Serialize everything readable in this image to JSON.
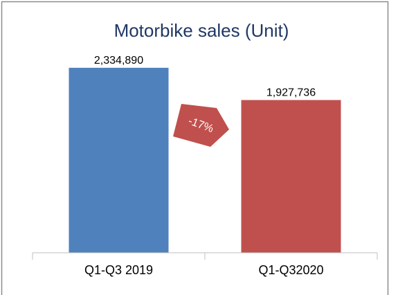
{
  "chart_data": {
    "type": "bar",
    "title": "Motorbike sales (Unit)",
    "categories": [
      "Q1-Q3 2019",
      "Q1-Q32020"
    ],
    "values": [
      2334890,
      1927736
    ],
    "value_labels": [
      "2,334,890",
      "1,927,736"
    ],
    "colors": [
      "#4f81bd",
      "#c0504d"
    ],
    "annotation": "-17%",
    "ylim": [
      0,
      2500000
    ]
  }
}
